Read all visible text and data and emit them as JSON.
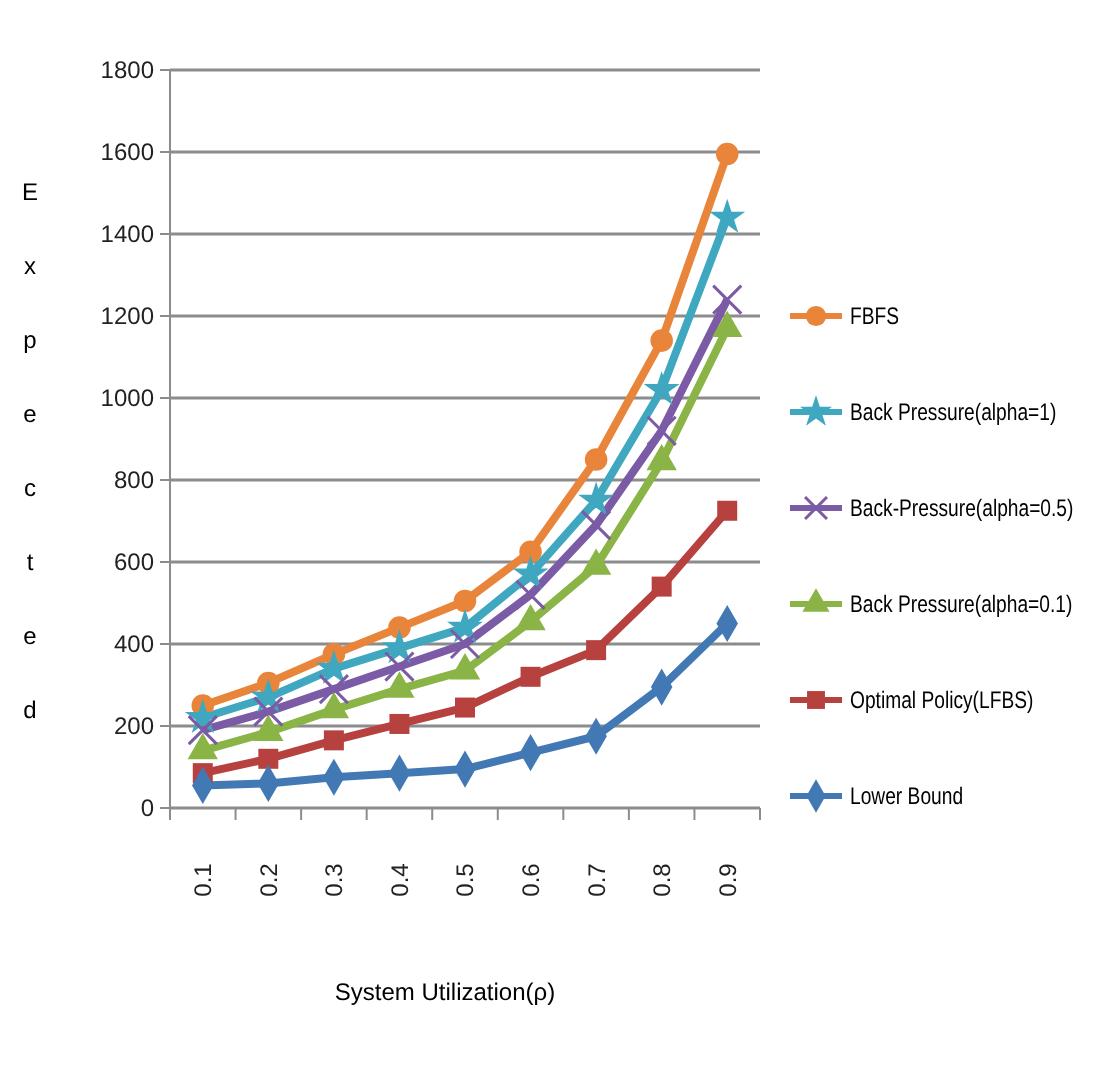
{
  "chart_data": {
    "type": "line",
    "xlabel": "System Utilization(ρ)",
    "ylabel": "Expected",
    "categories": [
      "0.1",
      "0.2",
      "0.3",
      "0.4",
      "0.5",
      "0.6",
      "0.7",
      "0.8",
      "0.9"
    ],
    "ylim": [
      0,
      1800
    ],
    "yticks": [
      0,
      200,
      400,
      600,
      800,
      1000,
      1200,
      1400,
      1600,
      1800
    ],
    "grid": "y",
    "legend": "right",
    "series": [
      {
        "name": "FBFS",
        "color": "#e8853b",
        "marker": "circle",
        "values": [
          250,
          305,
          375,
          440,
          505,
          625,
          850,
          1140,
          1595
        ]
      },
      {
        "name": "Back Pressure(alpha=1)",
        "color": "#3fa8c0",
        "marker": "star",
        "values": [
          220,
          270,
          340,
          390,
          440,
          570,
          750,
          1020,
          1440
        ]
      },
      {
        "name": "Back-Pressure(alpha=0.5)",
        "color": "#7b5aa6",
        "marker": "cross",
        "values": [
          190,
          235,
          290,
          345,
          400,
          520,
          690,
          920,
          1240
        ]
      },
      {
        "name": "Back Pressure(alpha=0.1)",
        "color": "#8ab446",
        "marker": "triangle",
        "values": [
          140,
          185,
          240,
          290,
          335,
          455,
          590,
          845,
          1170
        ]
      },
      {
        "name": "Optimal Policy(LFBS)",
        "color": "#b6413f",
        "marker": "square",
        "values": [
          85,
          120,
          165,
          205,
          245,
          320,
          385,
          540,
          725
        ]
      },
      {
        "name": "Lower Bound",
        "color": "#4279b5",
        "marker": "diamond",
        "values": [
          55,
          60,
          75,
          85,
          95,
          135,
          175,
          295,
          450
        ]
      }
    ]
  }
}
